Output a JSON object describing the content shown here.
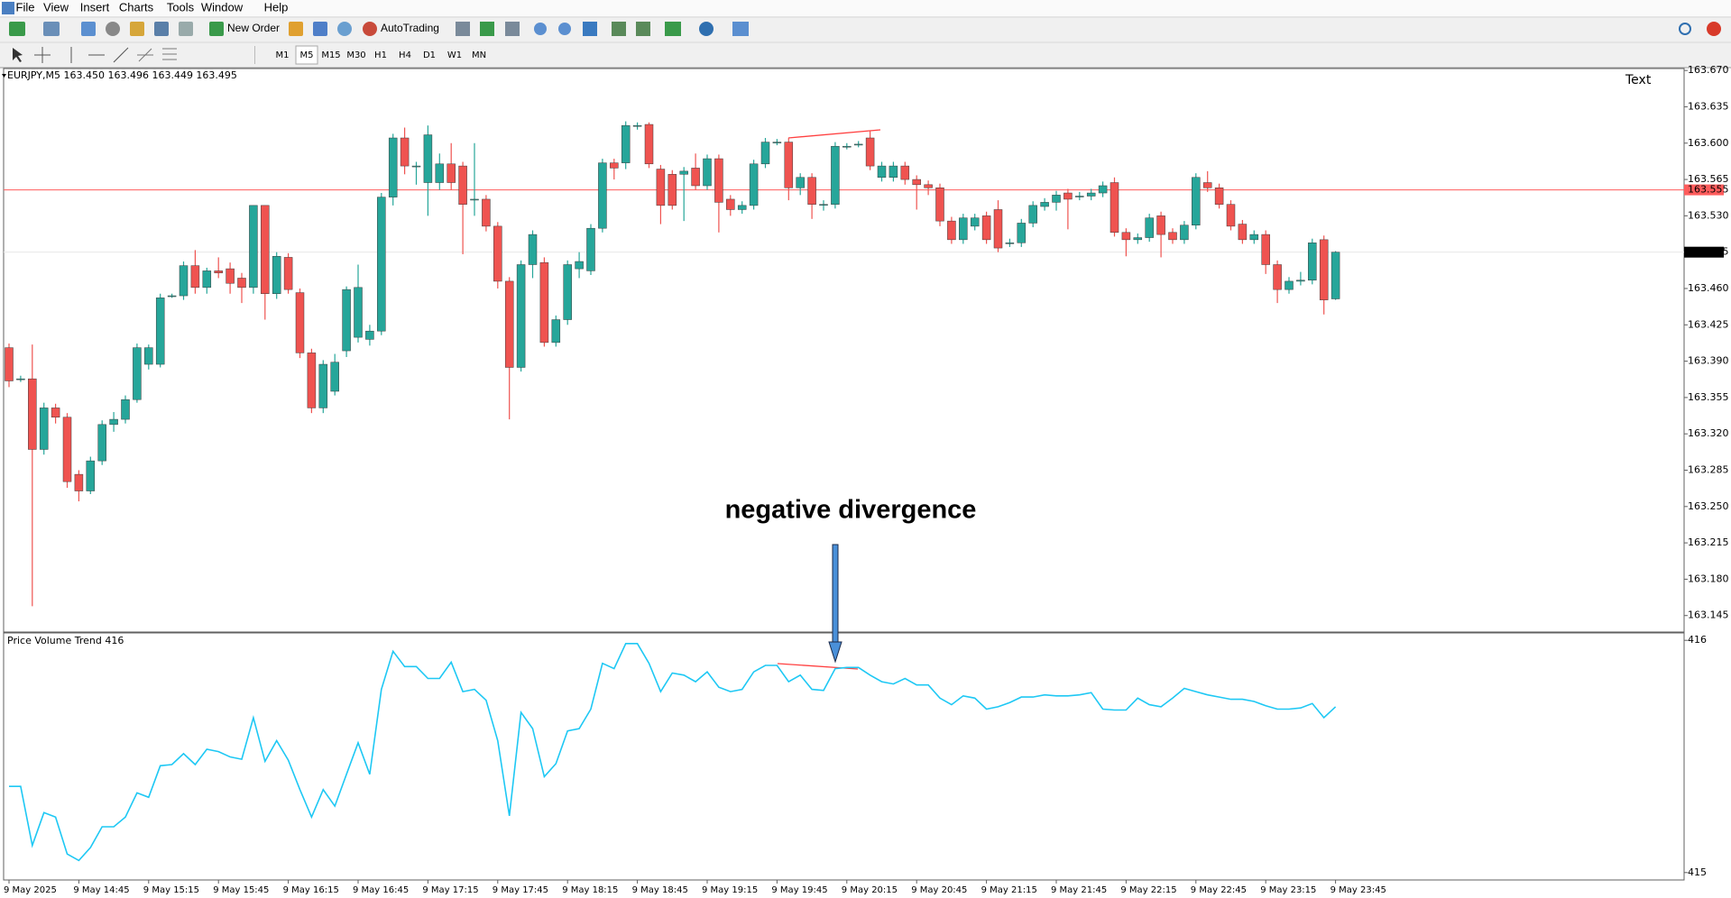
{
  "menu": [
    "File",
    "View",
    "Insert",
    "Charts",
    "Tools",
    "Window",
    "Help"
  ],
  "toolbar": {
    "new_order": "New Order",
    "autotrading": "AutoTrading"
  },
  "timeframes": [
    "M1",
    "M5",
    "M15",
    "M30",
    "H1",
    "H4",
    "D1",
    "W1",
    "MN"
  ],
  "text_object": "Text",
  "annotation": "negative divergence",
  "chart_data": [
    {
      "type": "candlestick",
      "title": "EURJPY,M5 163.450 163.496 163.449 163.495",
      "up_color": "#26a69a",
      "down_color": "#ef5350",
      "ylim": [
        163.13,
        163.671
      ],
      "yticks": [
        {
          "value": 163.67,
          "label": "163.670"
        },
        163.635,
        {
          "value": 163.6,
          "label": "163.600"
        },
        163.565,
        {
          "value": 163.53,
          "label": "163.530"
        },
        {
          "value": 163.46,
          "label": "163.460"
        },
        163.425,
        {
          "value": 163.39,
          "label": "163.390"
        },
        163.355,
        {
          "value": 163.32,
          "label": "163.320"
        },
        163.285,
        {
          "value": 163.25,
          "label": "163.250"
        },
        163.215,
        {
          "value": 163.18,
          "label": "163.180"
        },
        163.145
      ],
      "level_line": {
        "value": 163.555,
        "color": "#ff5c5c"
      },
      "current_price": 163.495,
      "categories": [
        "9 May 2025",
        null,
        null,
        null,
        null,
        null,
        "9 May 14:45",
        null,
        null,
        null,
        null,
        null,
        "9 May 15:15",
        null,
        null,
        null,
        null,
        null,
        "9 May 15:45",
        null,
        null,
        null,
        null,
        null,
        "9 May 16:15",
        null,
        null,
        null,
        null,
        null,
        "9 May 16:45",
        null,
        null,
        null,
        null,
        null,
        "9 May 17:15",
        null,
        null,
        null,
        null,
        null,
        "9 May 17:45",
        null,
        null,
        null,
        null,
        null,
        "9 May 18:15",
        null,
        null,
        null,
        null,
        null,
        "9 May 18:45",
        null,
        null,
        null,
        null,
        null,
        "9 May 19:15",
        null,
        null,
        null,
        null,
        null,
        "9 May 19:45",
        null,
        null,
        null,
        null,
        null,
        "9 May 20:15",
        null,
        null,
        null,
        null,
        null,
        "9 May 20:45",
        null,
        null,
        null,
        null,
        null,
        "9 May 21:15",
        null,
        null,
        null,
        null,
        null,
        "9 May 21:45",
        null,
        null,
        null,
        null,
        null,
        "9 May 22:15",
        null,
        null,
        null,
        null,
        null,
        "9 May 22:45",
        null,
        null,
        null,
        null,
        null,
        "9 May 23:15",
        null,
        null,
        null,
        null,
        null,
        "9 May 23:45"
      ],
      "ohlc": [
        [
          163.403,
          163.407,
          163.365,
          163.371
        ],
        [
          163.373,
          163.376,
          163.37,
          163.373
        ],
        [
          163.373,
          163.406,
          163.154,
          163.305
        ],
        [
          163.305,
          163.35,
          163.3,
          163.345
        ],
        [
          163.345,
          163.349,
          163.33,
          163.336
        ],
        [
          163.336,
          163.34,
          163.268,
          163.274
        ],
        [
          163.281,
          163.285,
          163.255,
          163.265
        ],
        [
          163.265,
          163.298,
          163.262,
          163.294
        ],
        [
          163.294,
          163.333,
          163.29,
          163.329
        ],
        [
          163.329,
          163.341,
          163.322,
          163.334
        ],
        [
          163.334,
          163.357,
          163.33,
          163.353
        ],
        [
          163.353,
          163.407,
          163.35,
          163.403
        ],
        [
          163.387,
          163.406,
          163.382,
          163.403
        ],
        [
          163.387,
          163.455,
          163.384,
          163.451
        ],
        [
          163.453,
          163.455,
          163.451,
          163.453
        ],
        [
          163.453,
          163.486,
          163.449,
          163.482
        ],
        [
          163.482,
          163.497,
          163.455,
          163.461
        ],
        [
          163.461,
          163.48,
          163.455,
          163.477
        ],
        [
          163.477,
          163.49,
          163.47,
          163.475
        ],
        [
          163.479,
          163.485,
          163.455,
          163.465
        ],
        [
          163.47,
          163.475,
          163.446,
          163.461
        ],
        [
          163.461,
          163.54,
          163.455,
          163.54
        ],
        [
          163.54,
          163.54,
          163.43,
          163.455
        ],
        [
          163.455,
          163.495,
          163.45,
          163.491
        ],
        [
          163.49,
          163.494,
          163.455,
          163.459
        ],
        [
          163.456,
          163.46,
          163.393,
          163.398
        ],
        [
          163.398,
          163.402,
          163.34,
          163.345
        ],
        [
          163.345,
          163.391,
          163.34,
          163.387
        ],
        [
          163.361,
          163.397,
          163.357,
          163.389
        ],
        [
          163.4,
          163.462,
          163.394,
          163.459
        ],
        [
          163.413,
          163.483,
          163.408,
          163.461
        ],
        [
          163.411,
          163.425,
          163.405,
          163.419
        ],
        [
          163.419,
          163.552,
          163.415,
          163.548
        ],
        [
          163.548,
          163.609,
          163.54,
          163.605
        ],
        [
          163.605,
          163.615,
          163.57,
          163.578
        ],
        [
          163.578,
          163.582,
          163.56,
          163.578
        ],
        [
          163.562,
          163.617,
          163.53,
          163.608
        ],
        [
          163.562,
          163.59,
          163.555,
          163.58
        ],
        [
          163.58,
          163.6,
          163.555,
          163.562
        ],
        [
          163.578,
          163.582,
          163.493,
          163.541
        ],
        [
          163.546,
          163.6,
          163.53,
          163.546
        ],
        [
          163.546,
          163.55,
          163.515,
          163.52
        ],
        [
          163.52,
          163.524,
          163.46,
          163.467
        ],
        [
          163.467,
          163.471,
          163.334,
          163.384
        ],
        [
          163.384,
          163.487,
          163.38,
          163.483
        ],
        [
          163.483,
          163.516,
          163.47,
          163.512
        ],
        [
          163.485,
          163.49,
          163.404,
          163.408
        ],
        [
          163.408,
          163.434,
          163.404,
          163.43
        ],
        [
          163.43,
          163.487,
          163.425,
          163.483
        ],
        [
          163.479,
          163.495,
          163.47,
          163.486
        ],
        [
          163.477,
          163.522,
          163.473,
          163.518
        ],
        [
          163.518,
          163.585,
          163.514,
          163.581
        ],
        [
          163.581,
          163.585,
          163.565,
          163.576
        ],
        [
          163.581,
          163.621,
          163.575,
          163.617
        ],
        [
          163.617,
          163.62,
          163.613,
          163.617
        ],
        [
          163.618,
          163.62,
          163.576,
          163.58
        ],
        [
          163.575,
          163.579,
          163.522,
          163.54
        ],
        [
          163.57,
          163.574,
          163.536,
          163.54
        ],
        [
          163.57,
          163.577,
          163.525,
          163.573
        ],
        [
          163.576,
          163.59,
          163.555,
          163.559
        ],
        [
          163.559,
          163.589,
          163.555,
          163.585
        ],
        [
          163.585,
          163.589,
          163.514,
          163.543
        ],
        [
          163.546,
          163.55,
          163.53,
          163.536
        ],
        [
          163.536,
          163.544,
          163.532,
          163.54
        ],
        [
          163.54,
          163.584,
          163.536,
          163.58
        ],
        [
          163.58,
          163.605,
          163.576,
          163.601
        ],
        [
          163.601,
          163.604,
          163.598,
          163.601
        ],
        [
          163.601,
          163.605,
          163.545,
          163.557
        ],
        [
          163.557,
          163.571,
          163.55,
          163.567
        ],
        [
          163.567,
          163.571,
          163.527,
          163.541
        ],
        [
          163.541,
          163.545,
          163.535,
          163.541
        ],
        [
          163.541,
          163.601,
          163.537,
          163.597
        ],
        [
          163.597,
          163.6,
          163.594,
          163.597
        ],
        [
          163.599,
          163.602,
          163.596,
          163.599
        ],
        [
          163.605,
          163.612,
          163.574,
          163.578
        ],
        [
          163.567,
          163.582,
          163.563,
          163.578
        ],
        [
          163.567,
          163.582,
          163.563,
          163.578
        ],
        [
          163.578,
          163.582,
          163.56,
          163.565
        ],
        [
          163.565,
          163.569,
          163.536,
          163.56
        ],
        [
          163.56,
          163.564,
          163.55,
          163.557
        ],
        [
          163.557,
          163.561,
          163.52,
          163.525
        ],
        [
          163.525,
          163.529,
          163.503,
          163.507
        ],
        [
          163.507,
          163.532,
          163.503,
          163.528
        ],
        [
          163.52,
          163.532,
          163.516,
          163.528
        ],
        [
          163.53,
          163.534,
          163.503,
          163.507
        ],
        [
          163.536,
          163.545,
          163.495,
          163.499
        ],
        [
          163.504,
          163.508,
          163.5,
          163.504
        ],
        [
          163.504,
          163.527,
          163.5,
          163.523
        ],
        [
          163.523,
          163.544,
          163.519,
          163.54
        ],
        [
          163.539,
          163.547,
          163.535,
          163.543
        ],
        [
          163.543,
          163.554,
          163.535,
          163.55
        ],
        [
          163.552,
          163.556,
          163.517,
          163.546
        ],
        [
          163.549,
          163.553,
          163.545,
          163.549
        ],
        [
          163.549,
          163.556,
          163.545,
          163.552
        ],
        [
          163.552,
          163.563,
          163.548,
          163.559
        ],
        [
          163.562,
          163.567,
          163.51,
          163.514
        ],
        [
          163.514,
          163.518,
          163.491,
          163.507
        ],
        [
          163.507,
          163.513,
          163.503,
          163.509
        ],
        [
          163.509,
          163.532,
          163.505,
          163.528
        ],
        [
          163.53,
          163.534,
          163.49,
          163.512
        ],
        [
          163.514,
          163.518,
          163.503,
          163.507
        ],
        [
          163.507,
          163.525,
          163.503,
          163.521
        ],
        [
          163.521,
          163.571,
          163.517,
          163.567
        ],
        [
          163.562,
          163.573,
          163.553,
          163.557
        ],
        [
          163.557,
          163.561,
          163.537,
          163.541
        ],
        [
          163.541,
          163.545,
          163.516,
          163.52
        ],
        [
          163.522,
          163.526,
          163.503,
          163.507
        ],
        [
          163.507,
          163.516,
          163.503,
          163.512
        ],
        [
          163.512,
          163.516,
          163.474,
          163.483
        ],
        [
          163.483,
          163.487,
          163.446,
          163.459
        ],
        [
          163.459,
          163.471,
          163.455,
          163.467
        ],
        [
          163.467,
          163.476,
          163.463,
          163.468
        ],
        [
          163.468,
          163.508,
          163.464,
          163.504
        ],
        [
          163.507,
          163.511,
          163.435,
          163.449
        ],
        [
          163.45,
          163.496,
          163.449,
          163.495
        ]
      ]
    },
    {
      "type": "line",
      "title": "Price Volume Trend 416",
      "color": "#1ec8f4",
      "ylim": [
        414.972,
        416.028
      ],
      "yticks": [
        415,
        416
      ],
      "values": [
        415.371,
        415.371,
        415.117,
        415.258,
        415.239,
        415.08,
        415.052,
        415.108,
        415.197,
        415.197,
        415.239,
        415.343,
        415.324,
        415.46,
        415.465,
        415.512,
        415.465,
        415.531,
        415.521,
        415.498,
        415.488,
        415.667,
        415.479,
        415.568,
        415.484,
        415.357,
        415.239,
        415.357,
        415.286,
        415.423,
        415.559,
        415.423,
        415.789,
        415.953,
        415.887,
        415.887,
        415.836,
        415.836,
        415.906,
        415.779,
        415.789,
        415.742,
        415.568,
        415.244,
        415.69,
        415.62,
        415.413,
        415.469,
        415.61,
        415.62,
        415.704,
        415.901,
        415.878,
        415.986,
        415.986,
        415.901,
        415.779,
        415.859,
        415.85,
        415.822,
        415.864,
        415.798,
        415.779,
        415.789,
        415.864,
        415.892,
        415.892,
        415.822,
        415.85,
        415.789,
        415.784,
        415.878,
        415.883,
        415.883,
        415.85,
        415.822,
        415.812,
        415.836,
        415.808,
        415.808,
        415.751,
        415.723,
        415.761,
        415.751,
        415.704,
        415.714,
        415.732,
        415.756,
        415.756,
        415.765,
        415.761,
        415.761,
        415.765,
        415.775,
        415.704,
        415.7,
        415.7,
        415.751,
        415.723,
        415.714,
        415.751,
        415.793,
        415.779,
        415.765,
        415.756,
        415.746,
        415.746,
        415.737,
        415.718,
        415.704,
        415.704,
        415.709,
        415.728,
        415.667,
        415.714
      ]
    }
  ]
}
